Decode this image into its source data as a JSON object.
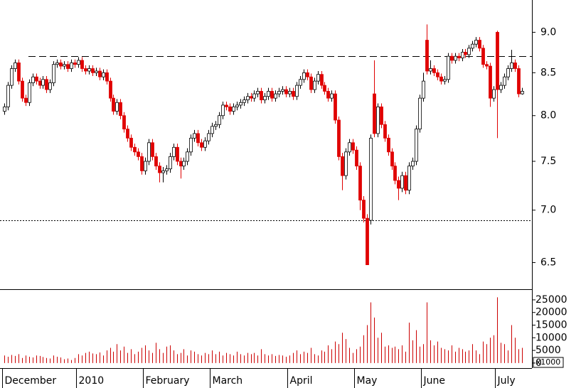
{
  "chart_data": {
    "type": "candlestick",
    "categories": [
      "December",
      null,
      null,
      null,
      null,
      null,
      null,
      null,
      null,
      null,
      null,
      null,
      null,
      null,
      null,
      null,
      null,
      null,
      null,
      null,
      null,
      "2010",
      null,
      null,
      null,
      null,
      null,
      null,
      null,
      null,
      null,
      null,
      null,
      null,
      null,
      null,
      null,
      null,
      null,
      null,
      "February",
      null,
      null,
      null,
      null,
      null,
      null,
      null,
      null,
      null,
      null,
      null,
      null,
      null,
      null,
      null,
      null,
      null,
      null,
      "March",
      null,
      null,
      null,
      null,
      null,
      null,
      null,
      null,
      null,
      null,
      null,
      null,
      null,
      null,
      null,
      null,
      null,
      null,
      null,
      null,
      null,
      "April",
      null,
      null,
      null,
      null,
      null,
      null,
      null,
      null,
      null,
      null,
      null,
      null,
      null,
      null,
      null,
      null,
      null,
      null,
      "May",
      null,
      null,
      null,
      null,
      null,
      null,
      null,
      null,
      null,
      null,
      null,
      null,
      null,
      null,
      null,
      null,
      null,
      null,
      "June",
      null,
      null,
      null,
      null,
      null,
      null,
      null,
      null,
      null,
      null,
      null,
      null,
      null,
      null,
      null,
      null,
      null,
      null,
      null,
      null,
      "July",
      null,
      null,
      null,
      null,
      null,
      null,
      null
    ],
    "open": [
      8.05,
      8.1,
      8.35,
      8.55,
      8.62,
      8.4,
      8.2,
      8.15,
      8.38,
      8.45,
      8.4,
      8.35,
      8.42,
      8.3,
      8.38,
      8.6,
      8.62,
      8.58,
      8.6,
      8.55,
      8.62,
      8.6,
      8.65,
      8.55,
      8.52,
      8.55,
      8.5,
      8.52,
      8.45,
      8.5,
      8.4,
      8.2,
      8.05,
      8.15,
      8.0,
      7.85,
      7.75,
      7.65,
      7.6,
      7.55,
      7.4,
      7.5,
      7.7,
      7.55,
      7.45,
      7.38,
      7.4,
      7.42,
      7.55,
      7.65,
      7.5,
      7.45,
      7.5,
      7.6,
      7.75,
      7.8,
      7.7,
      7.65,
      7.72,
      7.8,
      7.88,
      7.9,
      8.0,
      8.12,
      8.1,
      8.05,
      8.1,
      8.12,
      8.15,
      8.18,
      8.22,
      8.2,
      8.25,
      8.28,
      8.18,
      8.22,
      8.28,
      8.2,
      8.25,
      8.28,
      8.3,
      8.25,
      8.28,
      8.22,
      8.35,
      8.42,
      8.5,
      8.45,
      8.3,
      8.4,
      8.48,
      8.35,
      8.28,
      8.2,
      8.25,
      7.95,
      7.55,
      7.35,
      7.6,
      7.7,
      7.62,
      7.45,
      7.1,
      6.92,
      6.9,
      8.25,
      7.8,
      8.1,
      7.9,
      7.75,
      7.6,
      7.45,
      7.3,
      7.22,
      7.35,
      7.2,
      7.45,
      7.5,
      7.85,
      8.2,
      8.9,
      8.52,
      8.55,
      8.5,
      8.45,
      8.4,
      8.42,
      8.7,
      8.65,
      8.7,
      8.68,
      8.75,
      8.72,
      8.8,
      8.85,
      8.9,
      8.8,
      8.6,
      8.58,
      8.2,
      9.0,
      8.3,
      8.35,
      8.45,
      8.55,
      8.62,
      8.55,
      8.25
    ],
    "high": [
      8.14,
      8.39,
      8.59,
      8.66,
      8.66,
      8.44,
      8.24,
      8.42,
      8.49,
      8.49,
      8.44,
      8.46,
      8.46,
      8.42,
      8.64,
      8.66,
      8.66,
      8.64,
      8.64,
      8.66,
      8.66,
      8.69,
      8.69,
      8.59,
      8.59,
      8.59,
      8.56,
      8.56,
      8.54,
      8.54,
      8.44,
      8.24,
      8.19,
      8.19,
      8.04,
      7.89,
      7.79,
      7.69,
      7.64,
      7.59,
      7.54,
      7.74,
      7.74,
      7.59,
      7.49,
      7.44,
      7.46,
      7.59,
      7.69,
      7.69,
      7.54,
      7.54,
      7.64,
      7.79,
      7.84,
      7.84,
      7.74,
      7.76,
      7.84,
      7.92,
      7.94,
      8.04,
      8.16,
      8.16,
      8.14,
      8.14,
      8.16,
      8.19,
      8.22,
      8.26,
      8.26,
      8.29,
      8.32,
      8.32,
      8.26,
      8.32,
      8.32,
      8.29,
      8.32,
      8.34,
      8.34,
      8.32,
      8.32,
      8.39,
      8.46,
      8.54,
      8.54,
      8.49,
      8.44,
      8.52,
      8.52,
      8.39,
      8.32,
      8.29,
      8.29,
      7.99,
      7.59,
      7.64,
      7.74,
      7.74,
      7.66,
      7.49,
      7.14,
      6.96,
      7.79,
      8.65,
      8.14,
      8.14,
      7.94,
      7.79,
      7.64,
      7.49,
      7.34,
      7.39,
      7.39,
      7.49,
      7.54,
      7.89,
      8.24,
      8.5,
      9.1,
      8.65,
      8.59,
      8.54,
      8.49,
      8.46,
      8.74,
      8.74,
      8.74,
      8.74,
      8.79,
      8.79,
      8.84,
      8.89,
      8.94,
      8.94,
      8.84,
      8.64,
      8.62,
      8.34,
      9.02,
      8.39,
      8.49,
      8.59,
      8.78,
      8.66,
      8.59,
      8.32
    ],
    "low": [
      8.01,
      8.06,
      8.31,
      8.51,
      8.36,
      8.16,
      8.11,
      8.11,
      8.34,
      8.36,
      8.31,
      8.31,
      8.26,
      8.26,
      8.34,
      8.56,
      8.54,
      8.54,
      8.51,
      8.51,
      8.56,
      8.56,
      8.51,
      8.48,
      8.48,
      8.46,
      8.46,
      8.41,
      8.41,
      8.36,
      8.16,
      8.01,
      8.01,
      7.96,
      7.81,
      7.71,
      7.61,
      7.56,
      7.51,
      7.36,
      7.36,
      7.46,
      7.51,
      7.41,
      7.28,
      7.28,
      7.36,
      7.38,
      7.51,
      7.46,
      7.32,
      7.41,
      7.46,
      7.56,
      7.71,
      7.66,
      7.61,
      7.61,
      7.68,
      7.76,
      7.84,
      7.86,
      7.96,
      8.06,
      8.01,
      8.01,
      8.06,
      8.08,
      8.11,
      8.14,
      8.16,
      8.16,
      8.21,
      8.14,
      8.14,
      8.18,
      8.16,
      8.16,
      8.21,
      8.24,
      8.21,
      8.21,
      8.18,
      8.18,
      8.31,
      8.38,
      8.41,
      8.26,
      8.26,
      8.36,
      8.31,
      8.24,
      8.16,
      8.16,
      7.91,
      7.51,
      7.2,
      7.31,
      7.56,
      7.58,
      7.41,
      7.0,
      6.88,
      6.48,
      6.86,
      7.76,
      7.76,
      7.86,
      7.71,
      7.56,
      7.41,
      7.26,
      7.1,
      7.18,
      7.16,
      7.16,
      7.41,
      7.46,
      7.81,
      8.16,
      8.48,
      8.48,
      8.46,
      8.41,
      8.36,
      8.36,
      8.38,
      8.61,
      8.61,
      8.64,
      8.64,
      8.68,
      8.68,
      8.76,
      8.81,
      8.76,
      8.56,
      8.54,
      8.1,
      8.16,
      7.75,
      8.26,
      8.31,
      8.41,
      8.51,
      8.51,
      8.21,
      8.24
    ],
    "close": [
      8.1,
      8.35,
      8.55,
      8.62,
      8.4,
      8.2,
      8.15,
      8.38,
      8.45,
      8.4,
      8.35,
      8.42,
      8.3,
      8.38,
      8.6,
      8.62,
      8.58,
      8.6,
      8.55,
      8.62,
      8.6,
      8.65,
      8.55,
      8.52,
      8.55,
      8.5,
      8.52,
      8.45,
      8.5,
      8.4,
      8.2,
      8.05,
      8.15,
      8.0,
      7.85,
      7.75,
      7.65,
      7.6,
      7.55,
      7.4,
      7.5,
      7.7,
      7.55,
      7.45,
      7.38,
      7.4,
      7.42,
      7.55,
      7.65,
      7.5,
      7.45,
      7.5,
      7.6,
      7.75,
      7.8,
      7.7,
      7.65,
      7.72,
      7.8,
      7.88,
      7.9,
      8.0,
      8.12,
      8.1,
      8.05,
      8.1,
      8.12,
      8.15,
      8.18,
      8.22,
      8.2,
      8.25,
      8.28,
      8.18,
      8.22,
      8.28,
      8.2,
      8.25,
      8.28,
      8.3,
      8.25,
      8.28,
      8.22,
      8.35,
      8.42,
      8.5,
      8.45,
      8.3,
      8.4,
      8.48,
      8.35,
      8.28,
      8.2,
      8.25,
      7.95,
      7.55,
      7.35,
      7.6,
      7.7,
      7.62,
      7.45,
      7.1,
      6.92,
      6.48,
      7.75,
      7.8,
      8.1,
      7.9,
      7.75,
      7.6,
      7.45,
      7.3,
      7.22,
      7.35,
      7.2,
      7.45,
      7.5,
      7.85,
      8.2,
      8.4,
      8.52,
      8.55,
      8.5,
      8.45,
      8.4,
      8.42,
      8.7,
      8.65,
      8.7,
      8.68,
      8.75,
      8.72,
      8.8,
      8.85,
      8.9,
      8.8,
      8.6,
      8.58,
      8.2,
      8.3,
      8.3,
      8.35,
      8.45,
      8.55,
      8.62,
      8.55,
      8.25,
      8.28
    ],
    "up_color": "#ffffff",
    "down_color": "#e00000",
    "log_scale": true,
    "ylim": [
      6.26,
      9.42
    ],
    "yticks": [
      6.5,
      {
        "value": 7,
        "label": "7.0"
      },
      7.5,
      {
        "value": 8,
        "label": "8.0"
      },
      8.5,
      {
        "value": 9,
        "label": "9.0"
      }
    ],
    "hlines": [
      {
        "value": 8.7,
        "style": "dashed"
      },
      {
        "value": 6.9,
        "style": "dotted"
      }
    ],
    "volume": {
      "color": "#cc0000",
      "unit_label": "x1000",
      "ylim": [
        -2000,
        29200
      ],
      "yticks": [
        0,
        5000,
        10000,
        15000,
        20000,
        25000
      ],
      "values": [
        3000,
        2500,
        3200,
        2800,
        3500,
        2000,
        3000,
        2500,
        2200,
        3000,
        2800,
        2400,
        2000,
        1800,
        3000,
        2500,
        2200,
        1500,
        1800,
        1200,
        2000,
        3500,
        3000,
        4000,
        4500,
        3800,
        3500,
        4200,
        3000,
        5000,
        6000,
        4500,
        7500,
        5000,
        6500,
        4000,
        5500,
        3500,
        4500,
        6000,
        7000,
        5000,
        4000,
        8000,
        5500,
        4000,
        6500,
        7000,
        5000,
        3500,
        4000,
        5500,
        3000,
        5000,
        4500,
        3500,
        3000,
        4000,
        3500,
        5000,
        3500,
        4500,
        3000,
        4000,
        3500,
        3000,
        4500,
        3500,
        3000,
        4000,
        3500,
        4000,
        3000,
        5500,
        3500,
        3000,
        3500,
        2800,
        3200,
        3000,
        2500,
        3000,
        4000,
        5000,
        3500,
        4500,
        4000,
        6000,
        3500,
        3000,
        5000,
        4500,
        7000,
        5500,
        8500,
        7500,
        12000,
        9500,
        6000,
        4000,
        5500,
        6500,
        11000,
        15000,
        24000,
        18000,
        10000,
        12000,
        6500,
        7000,
        6000,
        6500,
        5500,
        7000,
        4500,
        16000,
        9000,
        13000,
        6500,
        7500,
        24000,
        9000,
        7000,
        8500,
        6000,
        5500,
        5000,
        7000,
        4500,
        6000,
        5500,
        4500,
        5000,
        7500,
        5000,
        3500,
        8500,
        7500,
        10000,
        11000,
        26000,
        8000,
        7500,
        5000,
        15000,
        10000,
        5500,
        6000
      ]
    }
  }
}
